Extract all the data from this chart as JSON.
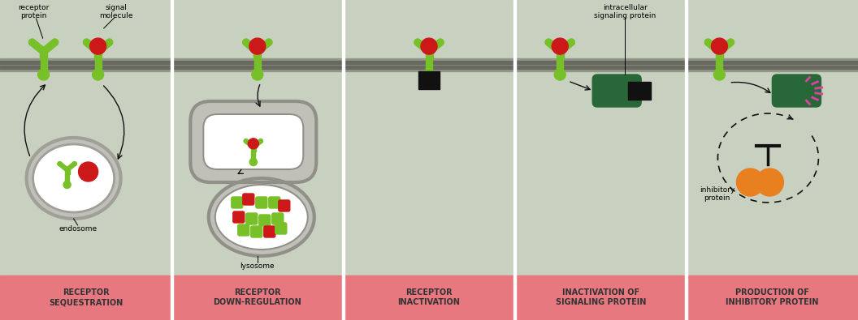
{
  "fig_width": 10.56,
  "fig_height": 3.95,
  "dpi": 100,
  "bg_color": "#c8d0c0",
  "label_bg_color": "#e87880",
  "green": "#78c028",
  "red": "#cc1818",
  "dark_green": "#286838",
  "orange": "#e88020",
  "black": "#111111",
  "white": "#ffffff",
  "gray_mem1": "#909888",
  "gray_mem2": "#686860",
  "endo_gray": "#c8c8c0",
  "endo_white": "#f0f0e8",
  "panel_labels": [
    "RECEPTOR\nSEQUESTRATION",
    "RECEPTOR\nDOWN-REGULATION",
    "RECEPTOR\nINACTIVATION",
    "INACTIVATION OF\nSIGNALING PROTEIN",
    "PRODUCTION OF\nINHIBITORY PROTEIN"
  ]
}
